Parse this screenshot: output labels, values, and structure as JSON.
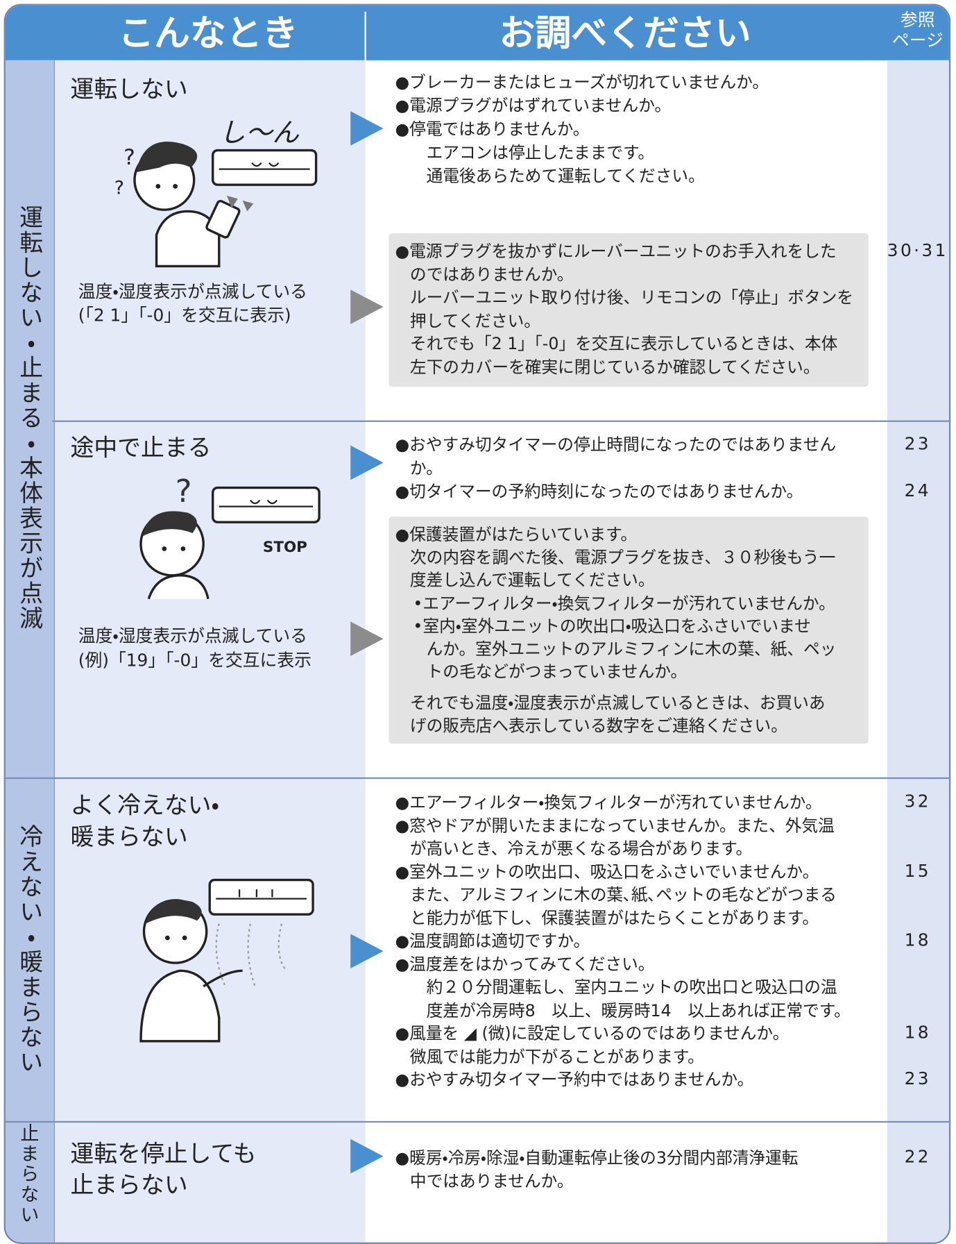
{
  "header": {
    "situation": "こんなとき",
    "check": "お調べください",
    "page": [
      "参照",
      "ページ"
    ]
  },
  "sections": [
    {
      "category": "運転しない・止まる・本体表示が点滅",
      "rows": [
        {
          "situation": [
            "運転しない"
          ],
          "illustration_text": "し〜ん",
          "condition": [
            "温度・湿度表示が点滅している",
            "(「2 1」「-0」を交互に表示)"
          ],
          "checks": [
            {
              "text": "●ブレーカーまたはヒューズが切れていませんか。"
            },
            {
              "text": "●電源プラグがはずれていませんか。"
            },
            {
              "text": "●停電ではありませんか。"
            },
            {
              "text": "エアコンは停止したままです。"
            },
            {
              "text": "通電後あらためて運転してください。"
            }
          ],
          "note": [
            [
              {
                "text": "●電源プラグを抜かずにルーバーユニットのお手入れをした",
                "page": "30·31"
              },
              {
                "text": "のではありませんか。"
              },
              {
                "text": "ルーバーユニット取り付け後、リモコンの「停止」ボタンを"
              },
              {
                "text": "押してください。"
              },
              {
                "text": "それでも「2 1」「-0」を交互に表示しているときは、本体"
              },
              {
                "text": "左下のカバーを確実に閉じているか確認してください。"
              }
            ]
          ]
        },
        {
          "situation": [
            "途中で止まる"
          ],
          "illustration_text": "STOP",
          "condition": [
            "温度・湿度表示が点滅している",
            "(例)「19」「-0」を交互に表示"
          ],
          "checks": [
            {
              "text": "●おやすみ切タイマーの停止時間になったのではありません",
              "page": "23"
            },
            {
              "text": "か。"
            },
            {
              "text": "●切タイマーの予約時刻になったのではありませんか。",
              "page": "24"
            }
          ],
          "note": [
            [
              {
                "text": "●保護装置がはたらいています。"
              },
              {
                "text": "次の内容を調べた後、電源プラグを抜き、３０秒後もう一"
              },
              {
                "text": "度差し込んで運転してください。"
              },
              {
                "text": "•エアーフィルター・換気フィルターが汚れていませんか。"
              },
              {
                "text": "•室内・室外ユニットの吹出口・吸込口をふさいでいませ"
              },
              {
                "text": "んか。室外ユニットのアルミフィンに木の葉、紙、ペッ"
              },
              {
                "text": "トの毛などがつまっていませんか。"
              }
            ],
            [
              {
                "text": "それでも温度・湿度表示が点滅しているときは、お買いあ"
              },
              {
                "text": "げの販売店へ表示している数字をご連絡ください。"
              }
            ]
          ]
        }
      ]
    },
    {
      "category": "冷えない・暖まらない",
      "rows": [
        {
          "situation": [
            "よく冷えない・",
            "暖まらない"
          ],
          "checks": [
            {
              "text": "●エアーフィルター・換気フィルターが汚れていませんか。",
              "page": "32"
            },
            {
              "text": "●窓やドアが開いたままになっていませんか。また、外気温"
            },
            {
              "text": "が高いとき、冷えが悪くなる場合があります。"
            },
            {
              "text": "●室外ユニットの吹出口、吸込口をふさいでいませんか。",
              "page": "15"
            },
            {
              "text": "また、アルミフィンに木の葉､紙､ペットの毛などがつまる"
            },
            {
              "text": "と能力が低下し、保護装置がはたらくことがあります。"
            },
            {
              "text": "●温度調節は適切ですか。",
              "page": "18"
            },
            {
              "text": "●温度差をはかってみてください。"
            },
            {
              "text": "約２０分間運転し、室内ユニットの吹出口と吸込口の温"
            },
            {
              "text": "度差が冷房時8　以上、暖房時14　以上あれば正常です。"
            },
            {
              "text": "●風量を ◢ (微)に設定しているのではありませんか。",
              "page": "18"
            },
            {
              "text": "微風では能力が下がることがあります。"
            },
            {
              "text": "●おやすみ切タイマー予約中ではありませんか。",
              "page": "23"
            }
          ]
        }
      ]
    },
    {
      "category": "止まらない",
      "rows": [
        {
          "situation": [
            "運転を停止しても",
            "止まらない"
          ],
          "checks": [
            {
              "text": "●暖房・冷房・除湿・自動運転停止後の3分間内部清浄運転",
              "page": "22"
            },
            {
              "text": "中ではありませんか。"
            }
          ]
        }
      ]
    }
  ]
}
